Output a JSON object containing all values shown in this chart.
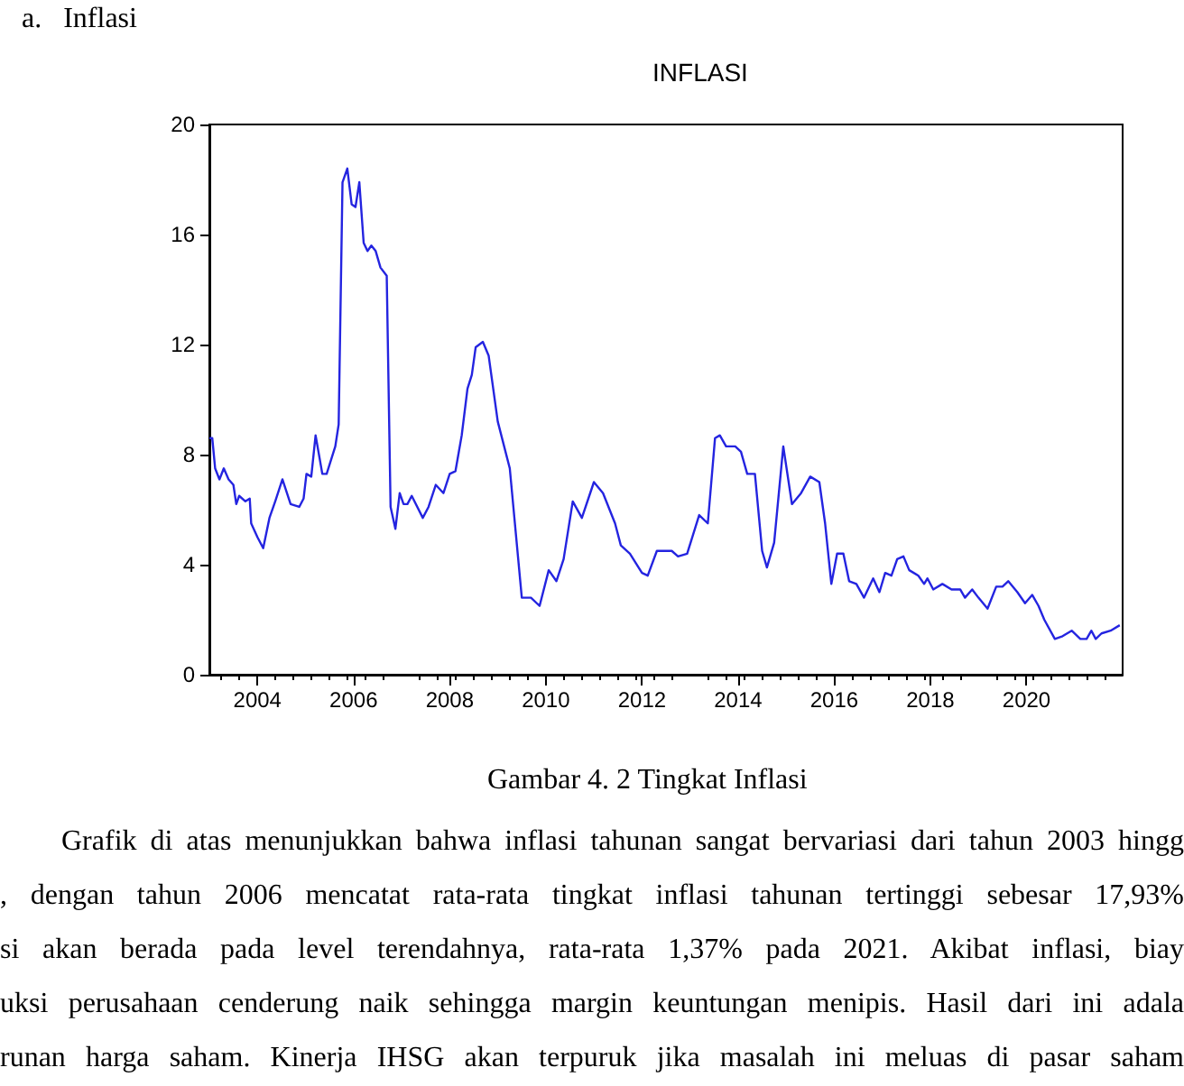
{
  "chart_data": {
    "type": "line",
    "title": "INFLASI",
    "annotations": [
      "a.   Inflasi",
      "Gambar 4. 2 Tingkat Inflasi",
      "Grafik di atas menunjukkan bahwa inflasi tahunan sangat bervariasi dari tahun 2003 hingg",
      ", dengan tahun 2006 mencatat rata-rata tingkat inflasi tahunan tertinggi sebesar 17,93%",
      "si akan berada pada level terendahnya, rata-rata 1,37% pada 2021. Akibat inflasi, biay",
      "uksi perusahaan cenderung naik sehingga margin keuntungan menipis. Hasil dari ini adala",
      "runan harga saham. Kinerja IHSG akan terpuruk jika masalah ini meluas di pasar saham"
    ],
    "x": [
      2003.0,
      2003.06,
      2003.12,
      2003.21,
      2003.3,
      2003.4,
      2003.5,
      2003.56,
      2003.62,
      2003.75,
      2003.84,
      2003.87,
      2004.0,
      2004.12,
      2004.25,
      2004.37,
      2004.52,
      2004.69,
      2004.87,
      2004.96,
      2005.02,
      2005.12,
      2005.21,
      2005.35,
      2005.44,
      2005.62,
      2005.69,
      2005.77,
      2005.87,
      2005.96,
      2006.04,
      2006.12,
      2006.21,
      2006.29,
      2006.37,
      2006.46,
      2006.56,
      2006.69,
      2006.77,
      2006.87,
      2006.96,
      2007.04,
      2007.12,
      2007.21,
      2007.44,
      2007.56,
      2007.71,
      2007.87,
      2008.0,
      2008.12,
      2008.25,
      2008.37,
      2008.46,
      2008.54,
      2008.69,
      2008.81,
      2009.0,
      2009.25,
      2009.5,
      2009.69,
      2009.87,
      2010.06,
      2010.22,
      2010.37,
      2010.56,
      2010.75,
      2011.0,
      2011.19,
      2011.44,
      2011.56,
      2011.75,
      2012.0,
      2012.12,
      2012.31,
      2012.62,
      2012.75,
      2012.94,
      2013.19,
      2013.37,
      2013.52,
      2013.62,
      2013.75,
      2013.94,
      2014.06,
      2014.19,
      2014.35,
      2014.5,
      2014.6,
      2014.75,
      2014.94,
      2015.12,
      2015.31,
      2015.5,
      2015.69,
      2015.81,
      2015.94,
      2016.06,
      2016.19,
      2016.31,
      2016.46,
      2016.62,
      2016.81,
      2016.94,
      2017.06,
      2017.19,
      2017.31,
      2017.44,
      2017.56,
      2017.75,
      2017.87,
      2017.94,
      2018.06,
      2018.25,
      2018.44,
      2018.62,
      2018.72,
      2018.87,
      2019.0,
      2019.19,
      2019.37,
      2019.5,
      2019.62,
      2019.81,
      2019.97,
      2020.12,
      2020.25,
      2020.37,
      2020.59,
      2020.75,
      2020.94,
      2021.12,
      2021.25,
      2021.35,
      2021.44,
      2021.56,
      2021.75,
      2021.94
    ],
    "series": [
      {
        "color": "#2424e0",
        "values": [
          8.6,
          8.6,
          7.5,
          7.1,
          7.5,
          7.1,
          6.9,
          6.2,
          6.5,
          6.3,
          6.4,
          5.5,
          5.0,
          4.6,
          5.7,
          6.3,
          7.1,
          6.2,
          6.1,
          6.4,
          7.3,
          7.2,
          8.7,
          7.3,
          7.3,
          8.3,
          9.1,
          17.9,
          18.4,
          17.1,
          17.0,
          17.9,
          15.7,
          15.4,
          15.6,
          15.4,
          14.8,
          14.5,
          6.1,
          5.3,
          6.6,
          6.2,
          6.2,
          6.5,
          5.7,
          6.1,
          6.9,
          6.6,
          7.3,
          7.4,
          8.7,
          10.4,
          10.9,
          11.9,
          12.1,
          11.6,
          9.2,
          7.5,
          2.8,
          2.8,
          2.5,
          3.8,
          3.4,
          4.2,
          6.3,
          5.7,
          7.0,
          6.6,
          5.5,
          4.7,
          4.4,
          3.7,
          3.6,
          4.5,
          4.5,
          4.3,
          4.4,
          5.8,
          5.5,
          8.6,
          8.7,
          8.3,
          8.3,
          8.1,
          7.3,
          7.3,
          4.5,
          3.9,
          4.8,
          8.3,
          6.2,
          6.6,
          7.2,
          7.0,
          5.5,
          3.3,
          4.4,
          4.4,
          3.4,
          3.3,
          2.8,
          3.5,
          3.0,
          3.7,
          3.6,
          4.2,
          4.3,
          3.8,
          3.6,
          3.3,
          3.5,
          3.1,
          3.3,
          3.1,
          3.1,
          2.8,
          3.1,
          2.8,
          2.4,
          3.2,
          3.2,
          3.4,
          3.0,
          2.6,
          2.9,
          2.5,
          2.0,
          1.3,
          1.4,
          1.6,
          1.3,
          1.3,
          1.6,
          1.3,
          1.5,
          1.6,
          1.8
        ]
      }
    ],
    "xlim": [
      2003,
      2022
    ],
    "xticks": [
      2004,
      2006,
      2008,
      2010,
      2012,
      2014,
      2016,
      2018,
      2020
    ],
    "ylim": [
      0,
      20
    ],
    "yticks": [
      0,
      4,
      8,
      12,
      16,
      20
    ],
    "grid": false,
    "marker": "none",
    "line_style": "solid"
  }
}
